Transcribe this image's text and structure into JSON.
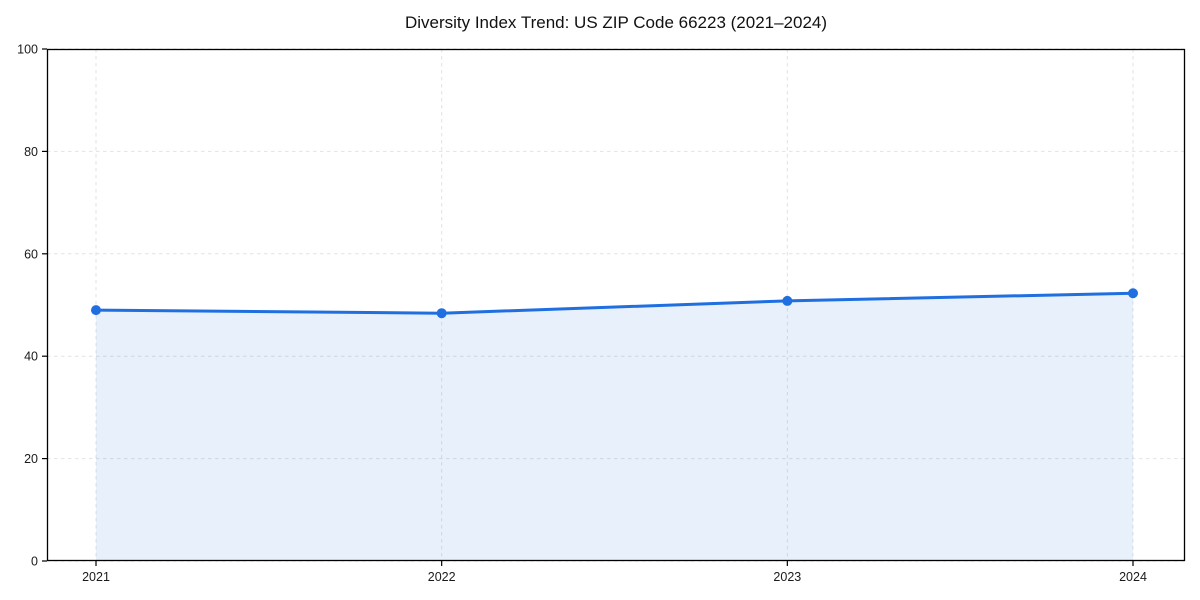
{
  "chart_data": {
    "type": "line",
    "title": "Diversity Index Trend: US ZIP Code 66223 (2021–2024)",
    "x": [
      "2021",
      "2022",
      "2023",
      "2024"
    ],
    "series": [
      {
        "name": "Diversity Index",
        "values": [
          49.0,
          48.4,
          50.8,
          52.3
        ]
      }
    ],
    "xlabel": "",
    "ylabel": "",
    "ylim": [
      0,
      100
    ],
    "yticks": [
      0,
      20,
      40,
      60,
      80,
      100
    ],
    "grid": true,
    "grid_style": "dashed",
    "legend": "none",
    "area_fill": true,
    "marker": "circle",
    "colors": {
      "line": "#1f6fe0",
      "marker": "#1f6fe0",
      "fill": "rgba(31,111,224,0.10)",
      "grid": "#e2e2e2",
      "spine": "#000000",
      "tick_label": "#1a1a1a",
      "background": "#ffffff"
    }
  }
}
